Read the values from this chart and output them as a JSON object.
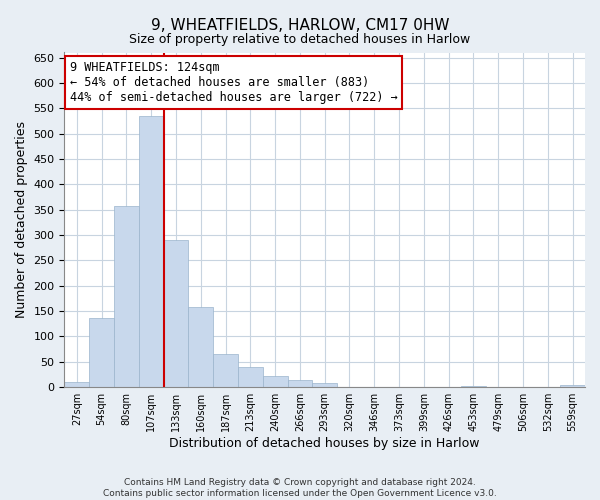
{
  "title": "9, WHEATFIELDS, HARLOW, CM17 0HW",
  "subtitle": "Size of property relative to detached houses in Harlow",
  "xlabel": "Distribution of detached houses by size in Harlow",
  "ylabel": "Number of detached properties",
  "bar_labels": [
    "27sqm",
    "54sqm",
    "80sqm",
    "107sqm",
    "133sqm",
    "160sqm",
    "187sqm",
    "213sqm",
    "240sqm",
    "266sqm",
    "293sqm",
    "320sqm",
    "346sqm",
    "373sqm",
    "399sqm",
    "426sqm",
    "453sqm",
    "479sqm",
    "506sqm",
    "532sqm",
    "559sqm"
  ],
  "bar_values": [
    10,
    137,
    358,
    535,
    291,
    158,
    66,
    40,
    22,
    15,
    8,
    0,
    0,
    0,
    0,
    0,
    3,
    0,
    0,
    0,
    4
  ],
  "bar_color": "#c8d8ec",
  "bar_edge_color": "#9ab4cc",
  "property_line_index": 4,
  "property_line_color": "#cc0000",
  "ylim": [
    0,
    660
  ],
  "yticks": [
    0,
    50,
    100,
    150,
    200,
    250,
    300,
    350,
    400,
    450,
    500,
    550,
    600,
    650
  ],
  "annotation_line1": "9 WHEATFIELDS: 124sqm",
  "annotation_line2": "← 54% of detached houses are smaller (883)",
  "annotation_line3": "44% of semi-detached houses are larger (722) →",
  "annotation_box_color": "#ffffff",
  "annotation_box_edge": "#cc0000",
  "footer_line1": "Contains HM Land Registry data © Crown copyright and database right 2024.",
  "footer_line2": "Contains public sector information licensed under the Open Government Licence v3.0.",
  "background_color": "#e8eef4",
  "plot_background_color": "#ffffff",
  "grid_color": "#c8d4e0"
}
